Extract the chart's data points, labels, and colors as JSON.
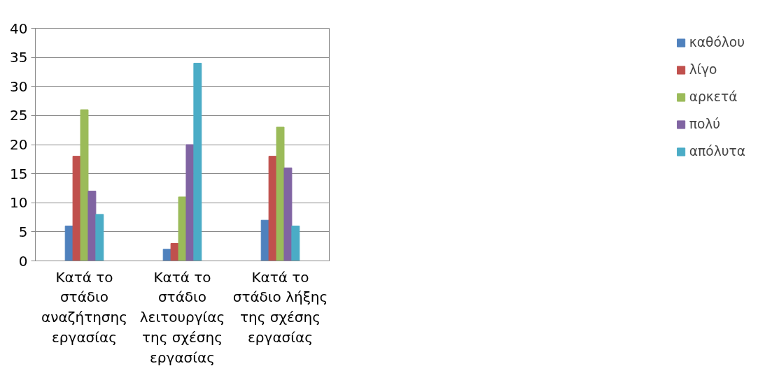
{
  "chart_data": {
    "type": "bar",
    "categories": [
      "Κατά το στάδιο αναζήτησης εργασίας",
      "Κατά το στάδιο λειτουργίας της σχέσης εργασίας",
      "Κατά το στάδιο λήξης της σχέσης εργασίας"
    ],
    "series": [
      {
        "name": "καθόλου",
        "color": "#4f81bd",
        "values": [
          6,
          2,
          7
        ]
      },
      {
        "name": "λίγο",
        "color": "#c0504d",
        "values": [
          18,
          3,
          18
        ]
      },
      {
        "name": "αρκετά",
        "color": "#9bbb59",
        "values": [
          26,
          11,
          23
        ]
      },
      {
        "name": "πολύ",
        "color": "#8064a2",
        "values": [
          12,
          20,
          16
        ]
      },
      {
        "name": "απόλυτα",
        "color": "#4bacc6",
        "values": [
          8,
          34,
          6
        ]
      }
    ],
    "ylim": [
      0,
      40
    ],
    "yticks": [
      0,
      5,
      10,
      15,
      20,
      25,
      30,
      35,
      40
    ],
    "grid": "y",
    "legend": "right"
  }
}
